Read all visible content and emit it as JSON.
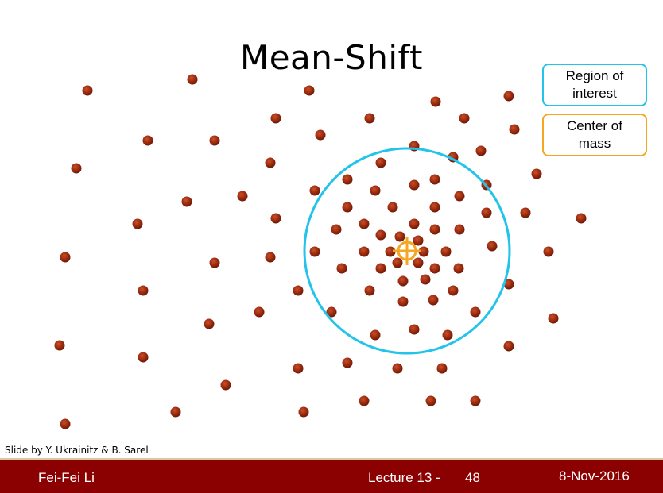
{
  "title": "Mean-Shift",
  "legend": {
    "region": "Region of interest",
    "center": "Center of mass"
  },
  "credit": "Slide by Y. Ukrainitz & B. Sarel",
  "footer": {
    "author": "Fei-Fei Li",
    "lecture": "Lecture 13 -",
    "page": "48",
    "date": "8-Nov-2016"
  },
  "colors": {
    "point": "#9b2a0e",
    "region": "#22c4ea",
    "center": "#f5a623",
    "footer": "#8b0000"
  }
}
